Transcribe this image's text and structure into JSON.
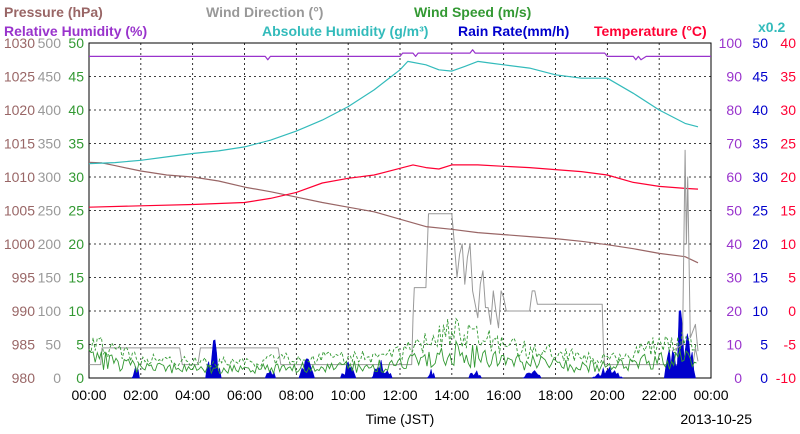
{
  "chart_data": {
    "type": "line",
    "date": "2013-10-25",
    "xlabel": "Time (JST)",
    "x_ticks": [
      "00:00",
      "02:00",
      "04:00",
      "06:00",
      "08:00",
      "10:00",
      "12:00",
      "14:00",
      "16:00",
      "18:00",
      "20:00",
      "22:00",
      "00:00"
    ],
    "xlim_hours": [
      0,
      24
    ],
    "headers": {
      "row1": [
        {
          "text": "Pressure (hPa)",
          "color": "#996666"
        },
        {
          "text": "Wind Direction (°)",
          "color": "#999999"
        },
        {
          "text": "Wind Speed (m/s)",
          "color": "#339933"
        }
      ],
      "row2": [
        {
          "text": "Relative Humidity (%)",
          "color": "#9933cc"
        },
        {
          "text": "Absolute Humidity (g/m³)",
          "color": "#33bbbb"
        },
        {
          "text": "Rain Rate(mm/h)",
          "color": "#0000cc"
        },
        {
          "text": "Temperature (°C)",
          "color": "#ff0033"
        }
      ],
      "scale_note": {
        "text": "x0.2",
        "color": "#33bbbb"
      }
    },
    "axes": [
      {
        "name": "pressure",
        "side": "left",
        "color": "#996666",
        "ticks": [
          "1030",
          "1025",
          "1020",
          "1015",
          "1010",
          "1005",
          "1000",
          "995",
          "990",
          "985",
          "980"
        ],
        "range": [
          980,
          1030
        ]
      },
      {
        "name": "wind_direction",
        "side": "left",
        "color": "#999999",
        "ticks": [
          "500",
          "450",
          "400",
          "350",
          "300",
          "250",
          "200",
          "150",
          "100",
          "50",
          "0"
        ],
        "range": [
          0,
          500
        ]
      },
      {
        "name": "wind_speed",
        "side": "left",
        "color": "#339933",
        "ticks": [
          "50",
          "45",
          "40",
          "35",
          "30",
          "25",
          "20",
          "15",
          "10",
          "5",
          "0"
        ],
        "range": [
          0,
          50
        ]
      },
      {
        "name": "humidity",
        "side": "right",
        "color": "#9933cc",
        "ticks": [
          "100",
          "90",
          "80",
          "70",
          "60",
          "50",
          "40",
          "30",
          "20",
          "10",
          "0"
        ],
        "range": [
          0,
          100
        ]
      },
      {
        "name": "rain_rate",
        "side": "right",
        "color": "#0000cc",
        "ticks": [
          "50",
          "45",
          "40",
          "35",
          "30",
          "25",
          "20",
          "15",
          "10",
          "5",
          "0"
        ],
        "range": [
          0,
          50
        ]
      },
      {
        "name": "temperature",
        "side": "right",
        "color": "#ff0033",
        "ticks": [
          "40",
          "35",
          "30",
          "25",
          "20",
          "15",
          "10",
          "5",
          "0",
          "-5",
          "-10"
        ],
        "range": [
          -10,
          40
        ]
      }
    ],
    "grid": true,
    "series": [
      {
        "name": "Relative Humidity (%)",
        "axis": "humidity",
        "color": "#9933cc",
        "x": [
          0,
          6.8,
          6.9,
          7.0,
          7.1,
          12.0,
          12.1,
          12.3,
          12.5,
          12.6,
          12.7,
          14.7,
          14.8,
          14.9,
          19.9,
          20.0,
          21.0,
          21.1,
          21.2,
          21.3,
          21.5,
          24
        ],
        "y": [
          96,
          96,
          95,
          96,
          96,
          96,
          97,
          97,
          97,
          96,
          97,
          97,
          98,
          97,
          97,
          96,
          96,
          95,
          96,
          95,
          96,
          96
        ]
      },
      {
        "name": "Absolute Humidity (g/m³)",
        "axis": "humidity",
        "color": "#33bbbb",
        "x": [
          0,
          1,
          2,
          3,
          4,
          5,
          6,
          7,
          8,
          9,
          10,
          11,
          11.5,
          12,
          12.3,
          13,
          13.5,
          14,
          14.5,
          15,
          15.5,
          16,
          17,
          18,
          19,
          20,
          21,
          22,
          23,
          23.5
        ],
        "y": [
          64,
          64.3,
          65,
          66,
          67,
          67.8,
          69,
          71,
          73.7,
          77,
          81,
          86,
          89,
          92,
          94.5,
          93.5,
          92,
          91.6,
          93,
          94.5,
          94,
          93.5,
          92.5,
          90.5,
          89.5,
          89.5,
          85,
          80,
          76,
          75
        ]
      },
      {
        "name": "Temperature (°C)",
        "axis": "temperature",
        "color": "#ff0033",
        "x": [
          0,
          2,
          4,
          6,
          7,
          8,
          9,
          10,
          11,
          12,
          12.5,
          13,
          13.5,
          14,
          15,
          16,
          17,
          18,
          19,
          20,
          21,
          22,
          23,
          23.5
        ],
        "y": [
          15.5,
          15.7,
          15.9,
          16.2,
          16.8,
          17.7,
          19.1,
          19.8,
          20.3,
          21.3,
          21.8,
          21.4,
          21.2,
          21.8,
          21.8,
          21.6,
          21.4,
          21.1,
          20.8,
          20.3,
          19.2,
          18.6,
          18.3,
          18.2
        ]
      },
      {
        "name": "Pressure (hPa)",
        "axis": "pressure",
        "color": "#996666",
        "x": [
          0,
          0.5,
          1,
          2,
          3,
          4,
          5,
          6,
          7,
          8,
          9,
          10,
          11,
          12,
          13,
          14,
          15,
          16,
          17,
          18,
          19,
          20,
          21,
          22,
          23,
          23.5
        ],
        "y": [
          1012.2,
          1012.1,
          1011.7,
          1010.9,
          1010.3,
          1010.0,
          1009.4,
          1008.5,
          1007.8,
          1007.0,
          1006.2,
          1005.5,
          1004.8,
          1003.7,
          1002.6,
          1002.2,
          1001.7,
          1001.4,
          1001.1,
          1000.8,
          1000.4,
          999.9,
          999.3,
          998.6,
          998.1,
          997.2
        ]
      },
      {
        "name": "Wind Direction (°)",
        "axis": "wind_direction",
        "color": "#999999",
        "x": [
          0,
          0.45,
          0.5,
          3.5,
          3.6,
          4.2,
          4.3,
          7.3,
          7.4,
          8.2,
          8.3,
          12.45,
          12.5,
          12.55,
          13.0,
          13.1,
          14.0,
          14.1,
          14.2,
          14.3,
          14.4,
          14.5,
          14.6,
          14.7,
          14.8,
          15.0,
          15.1,
          15.2,
          15.3,
          15.4,
          15.5,
          15.6,
          15.7,
          15.8,
          15.9,
          16.0,
          16.1,
          16.5,
          17.0,
          17.1,
          17.2,
          17.3,
          17.5,
          17.6,
          19.8,
          19.85,
          19.9,
          23.3,
          23.4,
          23.5
        ],
        "y": [
          20,
          20,
          45,
          45,
          20,
          20,
          45,
          45,
          20,
          20,
          20,
          20,
          90,
          135,
          135,
          245,
          245,
          200,
          150,
          185,
          200,
          140,
          180,
          200,
          130,
          90,
          140,
          160,
          105,
          105,
          80,
          130,
          100,
          75,
          130,
          120,
          100,
          100,
          100,
          130,
          130,
          110,
          110,
          110,
          110,
          45,
          20,
          20,
          45,
          25
        ]
      },
      {
        "name": "Wind Speed (m/s)",
        "axis": "wind_speed",
        "color": "#339933",
        "style": "noisy-envelope",
        "x": [
          0,
          2,
          4,
          6,
          8,
          10,
          12,
          14,
          16,
          18,
          20,
          22,
          23.5
        ],
        "y": [
          4.5,
          2.5,
          2.0,
          2.0,
          2.5,
          2.5,
          3.0,
          6.0,
          4.0,
          3.0,
          2.5,
          4.0,
          5.0
        ]
      },
      {
        "name": "Rain Rate(mm/h)",
        "axis": "rain_rate",
        "color": "#0000cc",
        "style": "filled-spikes",
        "bursts": [
          {
            "x": 1.8,
            "width": 0.3,
            "peak": 2.5
          },
          {
            "x": 4.8,
            "width": 0.6,
            "peak": 6.0
          },
          {
            "x": 7.0,
            "width": 0.4,
            "peak": 2.0
          },
          {
            "x": 8.4,
            "width": 0.6,
            "peak": 3.0
          },
          {
            "x": 10.0,
            "width": 0.6,
            "peak": 2.8
          },
          {
            "x": 11.3,
            "width": 0.8,
            "peak": 3.0
          },
          {
            "x": 13.2,
            "width": 0.3,
            "peak": 1.5
          },
          {
            "x": 14.9,
            "width": 0.5,
            "peak": 2.0
          },
          {
            "x": 17.1,
            "width": 0.7,
            "peak": 2.0
          },
          {
            "x": 20.0,
            "width": 1.2,
            "peak": 2.0
          },
          {
            "x": 22.8,
            "width": 1.2,
            "peak": 12.0
          }
        ]
      },
      {
        "name": "Wind Speed gust peak",
        "axis": "wind_speed",
        "color": "#999999",
        "style": "spike",
        "x": [
          22.5,
          22.9,
          23.0,
          23.05,
          23.1,
          23.2,
          23.4,
          23.5
        ],
        "y": [
          4,
          5,
          34,
          20,
          30,
          6,
          8,
          4
        ]
      }
    ]
  }
}
